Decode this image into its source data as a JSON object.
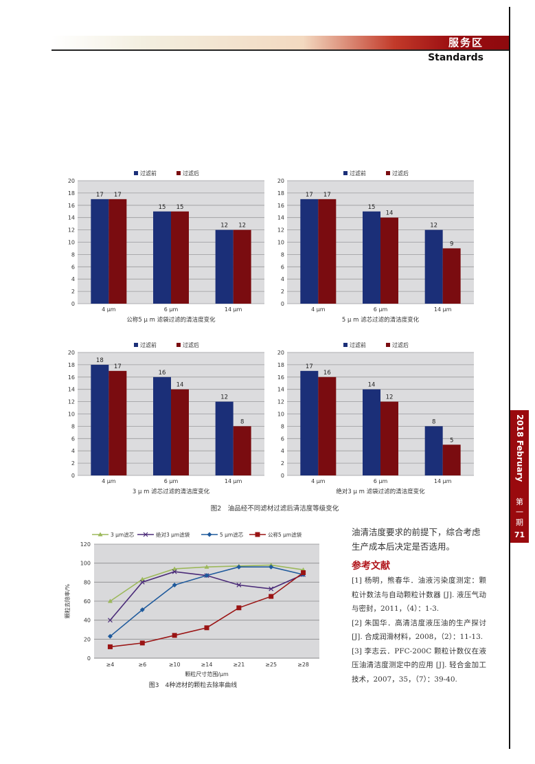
{
  "header": {
    "section": "服务区",
    "subtitle": "Standards"
  },
  "sidetab": {
    "date": "2018 February",
    "issue": [
      "第",
      "一",
      "期"
    ],
    "page": "71"
  },
  "colors": {
    "before": "#1b2f78",
    "after": "#7a0c10",
    "accent": "#9a0a0e"
  },
  "figure2": {
    "caption": "图2　油品经不同滤材过滤后清洁度等级变化"
  },
  "chart_data": [
    {
      "type": "bar",
      "title": "公称5 μ m 滤袋过滤的清洁度变化",
      "categories": [
        "4 μm",
        "6 μm",
        "14 μm"
      ],
      "series": [
        {
          "name": "过滤前",
          "values": [
            17,
            15,
            12
          ]
        },
        {
          "name": "过滤后",
          "values": [
            17,
            15,
            12
          ]
        }
      ],
      "ylim": [
        0,
        20
      ],
      "yticks": [
        0,
        2,
        4,
        6,
        8,
        10,
        12,
        14,
        16,
        18,
        20
      ],
      "legend": "top"
    },
    {
      "type": "bar",
      "title": "5 μ m 滤芯过滤的清洁度变化",
      "categories": [
        "4 μm",
        "6 μm",
        "14 μm"
      ],
      "series": [
        {
          "name": "过滤前",
          "values": [
            17,
            15,
            12
          ]
        },
        {
          "name": "过滤后",
          "values": [
            17,
            14,
            9
          ]
        }
      ],
      "ylim": [
        0,
        20
      ],
      "yticks": [
        0,
        2,
        4,
        6,
        8,
        10,
        12,
        14,
        16,
        18,
        20
      ],
      "legend": "top"
    },
    {
      "type": "bar",
      "title": "3 μ m 滤芯过滤的清洁度变化",
      "categories": [
        "4 μm",
        "6 μm",
        "14 μm"
      ],
      "series": [
        {
          "name": "过滤前",
          "values": [
            18,
            16,
            12
          ]
        },
        {
          "name": "过滤后",
          "values": [
            17,
            14,
            8
          ]
        }
      ],
      "ylim": [
        0,
        20
      ],
      "yticks": [
        0,
        2,
        4,
        6,
        8,
        10,
        12,
        14,
        16,
        18,
        20
      ],
      "legend": "top"
    },
    {
      "type": "bar",
      "title": "绝对3 μ m 滤袋过滤的清洁度变化",
      "categories": [
        "4 μm",
        "6 μm",
        "14 μm"
      ],
      "series": [
        {
          "name": "过滤前",
          "values": [
            17,
            14,
            8
          ]
        },
        {
          "name": "过滤后",
          "values": [
            16,
            12,
            5
          ]
        }
      ],
      "ylim": [
        0,
        20
      ],
      "yticks": [
        0,
        2,
        4,
        6,
        8,
        10,
        12,
        14,
        16,
        18,
        20
      ],
      "legend": "top"
    },
    {
      "type": "line",
      "title": "图3　4种滤材的颗粒去除率曲线",
      "xlabel": "颗粒尺寸范围/μm",
      "ylabel": "颗粒去除率/%",
      "categories": [
        "≥4",
        "≥6",
        "≥10",
        "≥14",
        "≥21",
        "≥25",
        "≥28"
      ],
      "ylim": [
        0,
        120
      ],
      "yticks": [
        0,
        20,
        40,
        60,
        80,
        100,
        120
      ],
      "legend": "top",
      "series": [
        {
          "name": "3 μm滤芯",
          "color": "#9cb85a",
          "marker": "triangle",
          "values": [
            60,
            83,
            94,
            96,
            97,
            98,
            93
          ]
        },
        {
          "name": "绝对3 μm滤袋",
          "color": "#4a2a78",
          "marker": "x",
          "values": [
            40,
            80,
            91,
            87,
            77,
            73,
            88
          ]
        },
        {
          "name": "5 μm滤芯",
          "color": "#1f5a9c",
          "marker": "diamond",
          "values": [
            23,
            51,
            77,
            87,
            96,
            96,
            88
          ]
        },
        {
          "name": "公称5 μm滤袋",
          "color": "#9a1414",
          "marker": "square",
          "values": [
            12,
            16,
            24,
            32,
            53,
            65,
            90
          ]
        }
      ]
    }
  ],
  "body": {
    "text": "油清洁度要求的前提下，综合考虑生产成本后决定是否选用。"
  },
  "references": {
    "title": "参考文献",
    "items": [
      "[1] 杨明，熊春华．油液污染度测定：颗粒计数法与自动颗粒计数器 [J]. 液压气动与密封，2011，（4）：1-3.",
      "[2] 朱国华．高清洁度液压油的生产探讨 [J]. 合成润滑材料，2008，（2）：11-13.",
      "[3] 李志云．PFC-200C 颗粒计数仪在液压油清洁度测定中的应用 [J]. 轻合金加工技术，2007，35，（7）：39-40."
    ]
  }
}
